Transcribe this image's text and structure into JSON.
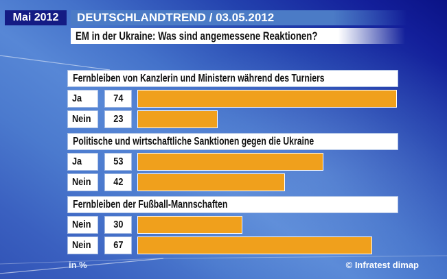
{
  "header": {
    "date_badge": "Mai 2012",
    "program_bar": "DEUTSCHLANDTREND / 03.05.2012",
    "title": "EM in der Ukraine: Was sind angemessene Reaktionen?"
  },
  "chart_data": {
    "type": "bar",
    "orientation": "horizontal",
    "unit": "%",
    "value_axis_max": 74,
    "grid": false,
    "legend_position": "none",
    "groups": [
      {
        "question": "Fernbleiben von Kanzlerin und Ministern während des Turniers",
        "rows": [
          {
            "label": "Ja",
            "value": 74
          },
          {
            "label": "Nein",
            "value": 23
          }
        ]
      },
      {
        "question": "Politische und wirtschaftliche Sanktionen gegen die Ukraine",
        "rows": [
          {
            "label": "Ja",
            "value": 53
          },
          {
            "label": "Nein",
            "value": 42
          }
        ]
      },
      {
        "question": "Fernbleiben der Fußball-Mannschaften",
        "rows": [
          {
            "label": "Nein",
            "value": 30
          },
          {
            "label": "Nein",
            "value": 67
          }
        ]
      }
    ]
  },
  "footer": {
    "unit_label": "in %",
    "source": "© Infratest dimap"
  },
  "colors": {
    "bar_orange": "#F0A01C",
    "badge_navy": "#141B84",
    "program_steel_blue": "#4B7BC6",
    "box_border_blue": "#A9BEE3",
    "text_black": "#111111",
    "footer_text": "#E6EFFC"
  }
}
